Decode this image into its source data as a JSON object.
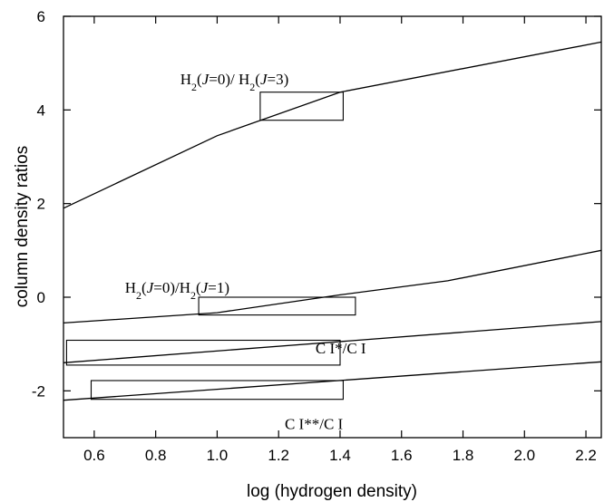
{
  "chart_data": {
    "type": "line",
    "title": "",
    "xlabel": "log (hydrogen density)",
    "ylabel": "column density ratios",
    "xlim": [
      0.5,
      2.25
    ],
    "ylim": [
      -3,
      6
    ],
    "xticks": [
      0.6,
      0.8,
      1.0,
      1.2,
      1.4,
      1.6,
      1.8,
      2.0,
      2.2
    ],
    "xtick_labels": [
      "0.6",
      "0.8",
      "1.0",
      "1.2",
      "1.4",
      "1.6",
      "1.8",
      "2.0",
      "2.2"
    ],
    "yticks": [
      -2,
      0,
      2,
      4,
      6
    ],
    "ytick_labels": [
      "-2",
      "0",
      "2",
      "4",
      "6"
    ],
    "grid": false,
    "series": [
      {
        "x": [
          0.5,
          1.0,
          1.4,
          2.25
        ],
        "y": [
          1.9,
          3.45,
          4.38,
          5.45
        ]
      },
      {
        "x": [
          0.5,
          1.0,
          1.4,
          1.75,
          2.25
        ],
        "y": [
          -0.55,
          -0.33,
          0.05,
          0.35,
          1.0
        ]
      },
      {
        "x": [
          0.5,
          2.25
        ],
        "y": [
          -1.4,
          -0.52
        ]
      },
      {
        "x": [
          0.5,
          2.25
        ],
        "y": [
          -2.2,
          -1.38
        ]
      }
    ],
    "boxes": [
      {
        "x": [
          1.14,
          1.41
        ],
        "y": [
          3.78,
          4.38
        ]
      },
      {
        "x": [
          0.94,
          1.45
        ],
        "y": [
          -0.38,
          0.0
        ]
      },
      {
        "x": [
          0.51,
          1.4
        ],
        "y": [
          -1.45,
          -0.92
        ]
      },
      {
        "x": [
          0.59,
          1.41
        ],
        "y": [
          -2.18,
          -1.78
        ]
      }
    ],
    "annotations": [
      {
        "id": "h2-j0-j3",
        "text_parts": [
          [
            "H",
            "n"
          ],
          [
            "2",
            "sub"
          ],
          [
            "(",
            "n"
          ],
          [
            "J",
            "i"
          ],
          [
            "=0)/ H",
            "n"
          ],
          [
            "2",
            "sub"
          ],
          [
            "(",
            "n"
          ],
          [
            "J",
            "i"
          ],
          [
            "=3)",
            "n"
          ]
        ],
        "x": 0.88,
        "y": 4.55
      },
      {
        "id": "h2-j0-j1",
        "text_parts": [
          [
            "H",
            "n"
          ],
          [
            "2",
            "sub"
          ],
          [
            "(",
            "n"
          ],
          [
            "J",
            "i"
          ],
          [
            "=0)/H",
            "n"
          ],
          [
            "2",
            "sub"
          ],
          [
            "(",
            "n"
          ],
          [
            "J",
            "i"
          ],
          [
            "=1)",
            "n"
          ]
        ],
        "x": 0.7,
        "y": 0.1
      },
      {
        "id": "ci-star",
        "text_parts": [
          [
            "C I*/C I",
            "n"
          ]
        ],
        "x": 1.32,
        "y": -1.2
      },
      {
        "id": "ci-double-star",
        "text_parts": [
          [
            "C I**/C I",
            "n"
          ]
        ],
        "x": 1.22,
        "y": -2.82
      }
    ]
  }
}
